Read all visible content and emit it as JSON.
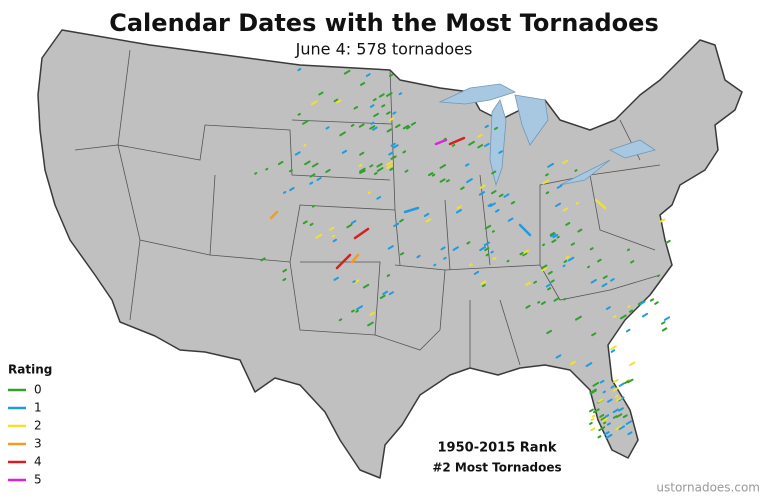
{
  "header": {
    "title": "Calendar Dates with the Most Tornadoes",
    "subtitle": "June 4: 578 tornadoes"
  },
  "legend": {
    "title": "Rating",
    "items": [
      {
        "label": "0",
        "color": "#33a02c"
      },
      {
        "label": "1",
        "color": "#1f9be0"
      },
      {
        "label": "2",
        "color": "#f2e030"
      },
      {
        "label": "3",
        "color": "#f39c1f"
      },
      {
        "label": "4",
        "color": "#d62020"
      },
      {
        "label": "5",
        "color": "#e020e0"
      }
    ]
  },
  "rank": {
    "title": "1950-2015 Rank",
    "text": "#2 Most Tornadoes"
  },
  "footer": {
    "source": "ustornadoes.com"
  }
}
